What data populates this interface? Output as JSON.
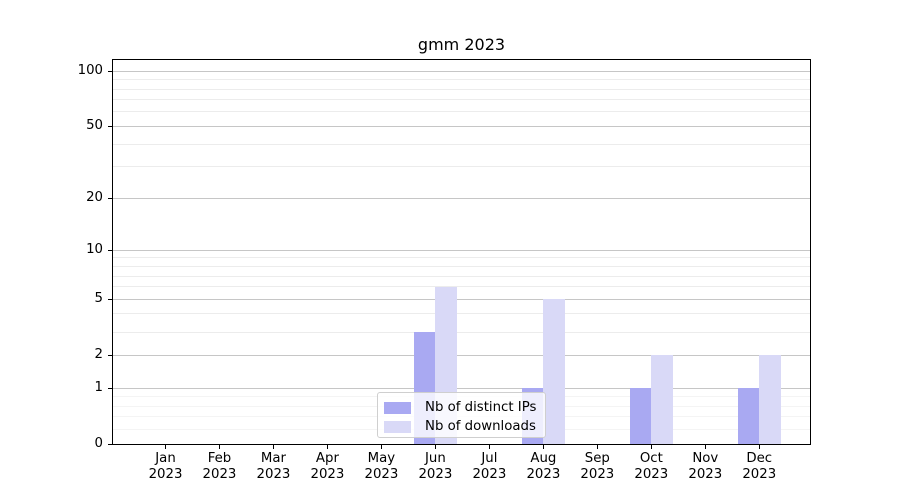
{
  "title": "gmm 2023",
  "chart_data": {
    "type": "bar",
    "title": "gmm 2023",
    "months": [
      "Jan",
      "Feb",
      "Mar",
      "Apr",
      "May",
      "Jun",
      "Jul",
      "Aug",
      "Sep",
      "Oct",
      "Nov",
      "Dec"
    ],
    "year": "2023",
    "categories": [
      "Jan 2023",
      "Feb 2023",
      "Mar 2023",
      "Apr 2023",
      "May 2023",
      "Jun 2023",
      "Jul 2023",
      "Aug 2023",
      "Sep 2023",
      "Oct 2023",
      "Nov 2023",
      "Dec 2023"
    ],
    "series": [
      {
        "name": "Nb of distinct IPs",
        "color": "#a9a9f2",
        "values": [
          0,
          0,
          0,
          0,
          0,
          3,
          0,
          1,
          0,
          1,
          0,
          1
        ]
      },
      {
        "name": "Nb of downloads",
        "color": "#d9d9f7",
        "values": [
          0,
          0,
          0,
          0,
          0,
          6,
          0,
          5,
          0,
          2,
          0,
          2
        ]
      }
    ],
    "xlabel": "",
    "ylabel": "",
    "y_axis": {
      "scale": "log1p",
      "major_ticks": [
        0,
        1,
        2,
        5,
        10,
        20,
        50,
        100
      ],
      "minor_ticks": [
        3,
        4,
        6,
        7,
        8,
        9,
        30,
        40,
        60,
        70,
        80,
        90
      ],
      "subminor_ticks": [
        0.2,
        0.4,
        0.6,
        0.8
      ],
      "ylim": [
        0,
        115
      ]
    },
    "grid": "horizontal-on",
    "legend_position": "lower-center"
  },
  "colors": {
    "spine": "#000000",
    "major_grid": "#c6c6c6",
    "minor_grid": "#ececec",
    "background": "#ffffff"
  }
}
